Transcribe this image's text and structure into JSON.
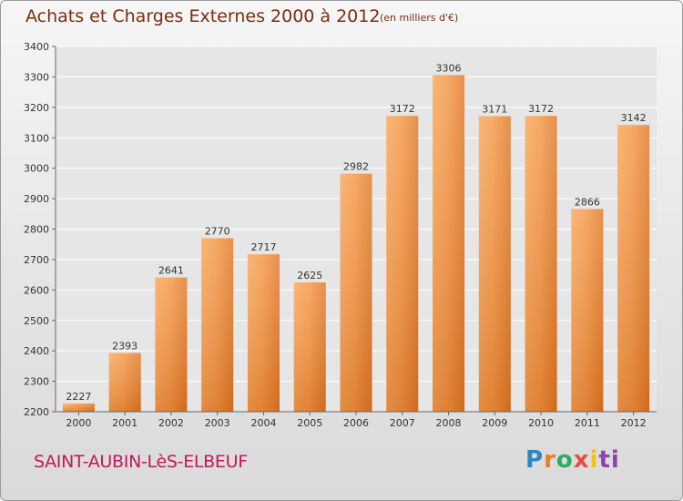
{
  "header": {
    "title": "Achats et Charges Externes 2000 à 2012",
    "unit_note": "(en milliers d'€)"
  },
  "footer": {
    "place": "SAINT-AUBIN-LèS-ELBEUF",
    "logo_parts": [
      "P",
      "r",
      "o",
      "x",
      "i",
      "ti"
    ]
  },
  "colors": {
    "bar": "#f0923b",
    "bar_light": "#f8b06a",
    "bar_dark": "#d96f1f",
    "grid": "#ffffff",
    "title": "#7a2d10",
    "place": "#c2185b"
  },
  "chart_data": {
    "type": "bar",
    "categories": [
      "2000",
      "2001",
      "2002",
      "2003",
      "2004",
      "2005",
      "2006",
      "2007",
      "2008",
      "2009",
      "2010",
      "2011",
      "2012"
    ],
    "values": [
      2227,
      2393,
      2641,
      2770,
      2717,
      2625,
      2982,
      3172,
      3306,
      3171,
      3172,
      2866,
      3142
    ],
    "ylim": [
      2200,
      3400
    ],
    "yticks": [
      2200,
      2300,
      2400,
      2500,
      2600,
      2700,
      2800,
      2900,
      3000,
      3100,
      3200,
      3300,
      3400
    ],
    "grid": true,
    "title": "Achats et Charges Externes 2000 à 2012",
    "xlabel": "",
    "ylabel": ""
  }
}
